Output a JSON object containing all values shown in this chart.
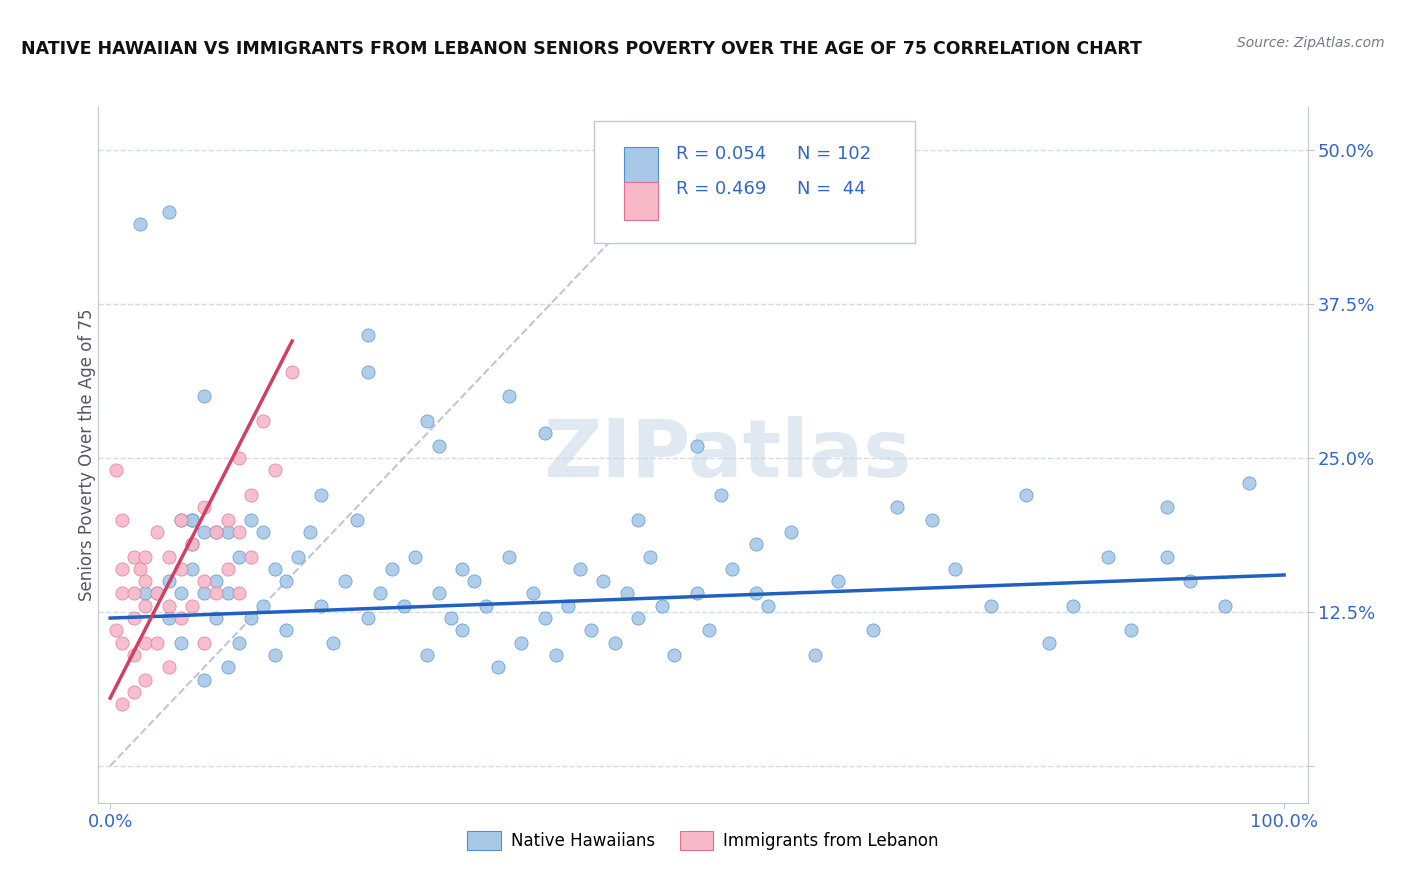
{
  "title": "NATIVE HAWAIIAN VS IMMIGRANTS FROM LEBANON SENIORS POVERTY OVER THE AGE OF 75 CORRELATION CHART",
  "source": "Source: ZipAtlas.com",
  "ylabel": "Seniors Poverty Over the Age of 75",
  "xlim": [
    -0.01,
    1.02
  ],
  "ylim": [
    -0.03,
    0.535
  ],
  "xticks": [
    0.0,
    1.0
  ],
  "xticklabels": [
    "0.0%",
    "100.0%"
  ],
  "ytick_positions": [
    0.0,
    0.125,
    0.25,
    0.375,
    0.5
  ],
  "yticklabels": [
    "",
    "12.5%",
    "25.0%",
    "37.5%",
    "50.0%"
  ],
  "R_blue": 0.054,
  "N_blue": 102,
  "R_pink": 0.469,
  "N_pink": 44,
  "blue_scatter_color": "#a8c8e8",
  "pink_scatter_color": "#f7b8c8",
  "blue_edge_color": "#5090d0",
  "pink_edge_color": "#e07090",
  "blue_line_color": "#2060c0",
  "pink_line_color": "#d04060",
  "text_color": "#3366cc",
  "grid_color": "#d0dce8",
  "background_color": "#ffffff",
  "watermark": "ZIPatlas",
  "legend_label_blue": "Native Hawaiians",
  "legend_label_pink": "Immigrants from Lebanon",
  "blue_x": [
    0.025,
    0.04,
    0.05,
    0.05,
    0.06,
    0.06,
    0.07,
    0.07,
    0.07,
    0.08,
    0.08,
    0.09,
    0.09,
    0.1,
    0.1,
    0.1,
    0.11,
    0.11,
    0.12,
    0.12,
    0.13,
    0.13,
    0.14,
    0.14,
    0.15,
    0.15,
    0.16,
    0.17,
    0.18,
    0.19,
    0.2,
    0.21,
    0.22,
    0.23,
    0.24,
    0.25,
    0.26,
    0.27,
    0.28,
    0.29,
    0.3,
    0.3,
    0.31,
    0.32,
    0.33,
    0.34,
    0.35,
    0.36,
    0.37,
    0.38,
    0.39,
    0.4,
    0.41,
    0.42,
    0.43,
    0.44,
    0.45,
    0.46,
    0.47,
    0.48,
    0.5,
    0.51,
    0.52,
    0.53,
    0.55,
    0.56,
    0.58,
    0.6,
    0.62,
    0.65,
    0.67,
    0.7,
    0.72,
    0.75,
    0.78,
    0.8,
    0.82,
    0.85,
    0.87,
    0.9,
    0.92,
    0.95,
    0.97,
    0.34,
    0.27,
    0.18,
    0.08,
    0.05,
    0.03,
    0.06,
    0.09,
    0.28,
    0.45,
    0.55,
    0.9,
    0.07,
    0.08,
    0.22,
    0.22,
    0.37,
    0.5
  ],
  "blue_y": [
    0.44,
    0.14,
    0.15,
    0.12,
    0.14,
    0.1,
    0.16,
    0.18,
    0.2,
    0.14,
    0.07,
    0.15,
    0.12,
    0.19,
    0.14,
    0.08,
    0.17,
    0.1,
    0.2,
    0.12,
    0.19,
    0.13,
    0.16,
    0.09,
    0.15,
    0.11,
    0.17,
    0.19,
    0.13,
    0.1,
    0.15,
    0.2,
    0.12,
    0.14,
    0.16,
    0.13,
    0.17,
    0.09,
    0.14,
    0.12,
    0.16,
    0.11,
    0.15,
    0.13,
    0.08,
    0.17,
    0.1,
    0.14,
    0.12,
    0.09,
    0.13,
    0.16,
    0.11,
    0.15,
    0.1,
    0.14,
    0.12,
    0.17,
    0.13,
    0.09,
    0.14,
    0.11,
    0.22,
    0.16,
    0.14,
    0.13,
    0.19,
    0.09,
    0.15,
    0.11,
    0.21,
    0.2,
    0.16,
    0.13,
    0.22,
    0.1,
    0.13,
    0.17,
    0.11,
    0.21,
    0.15,
    0.13,
    0.23,
    0.3,
    0.28,
    0.22,
    0.3,
    0.45,
    0.14,
    0.2,
    0.19,
    0.26,
    0.2,
    0.18,
    0.17,
    0.2,
    0.19,
    0.35,
    0.32,
    0.27,
    0.26
  ],
  "pink_x": [
    0.005,
    0.005,
    0.01,
    0.01,
    0.01,
    0.01,
    0.01,
    0.02,
    0.02,
    0.02,
    0.02,
    0.02,
    0.025,
    0.03,
    0.03,
    0.03,
    0.03,
    0.03,
    0.04,
    0.04,
    0.04,
    0.05,
    0.05,
    0.05,
    0.06,
    0.06,
    0.06,
    0.07,
    0.07,
    0.08,
    0.08,
    0.08,
    0.09,
    0.09,
    0.1,
    0.1,
    0.11,
    0.11,
    0.11,
    0.12,
    0.12,
    0.13,
    0.14,
    0.155
  ],
  "pink_y": [
    0.24,
    0.11,
    0.2,
    0.16,
    0.14,
    0.1,
    0.05,
    0.17,
    0.14,
    0.12,
    0.09,
    0.06,
    0.16,
    0.17,
    0.15,
    0.13,
    0.1,
    0.07,
    0.19,
    0.14,
    0.1,
    0.17,
    0.13,
    0.08,
    0.2,
    0.16,
    0.12,
    0.18,
    0.13,
    0.21,
    0.15,
    0.1,
    0.19,
    0.14,
    0.2,
    0.16,
    0.25,
    0.19,
    0.14,
    0.22,
    0.17,
    0.28,
    0.24,
    0.32
  ],
  "ref_line_x": [
    0.0,
    0.5
  ],
  "ref_line_y": [
    0.0,
    0.5
  ],
  "blue_trend_x": [
    0.0,
    1.0
  ],
  "blue_trend_y_start": 0.12,
  "blue_trend_y_end": 0.155,
  "pink_trend_x_start": 0.0,
  "pink_trend_x_end": 0.155,
  "pink_trend_y_start": 0.055,
  "pink_trend_y_end": 0.345
}
